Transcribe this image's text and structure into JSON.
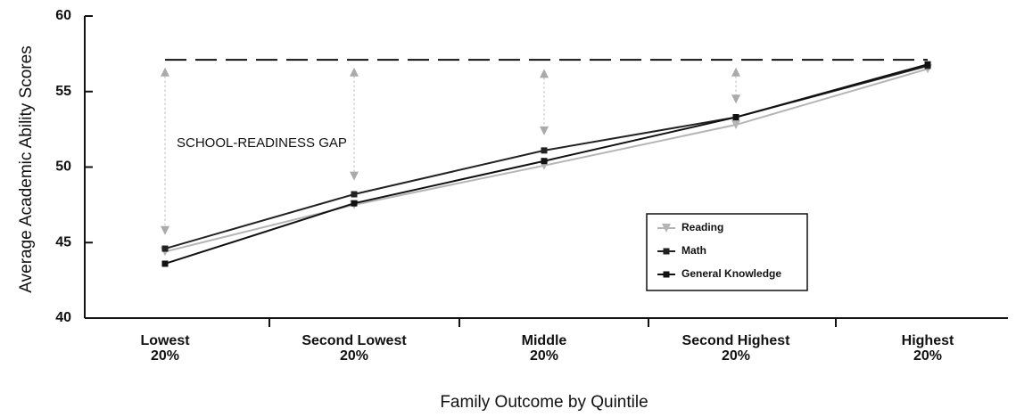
{
  "chart_data": {
    "type": "line",
    "ylabel": "Average Academic Ability Scores",
    "xlabel": "Family Outcome by Quintile",
    "annotation": "SCHOOL-READINESS GAP",
    "categories": [
      [
        "Lowest",
        "20%"
      ],
      [
        "Second Lowest",
        "20%"
      ],
      [
        "Middle",
        "20%"
      ],
      [
        "Second Highest",
        "20%"
      ],
      [
        "Highest",
        "20%"
      ]
    ],
    "series": [
      {
        "name": "Reading",
        "color": "#b5b5b5",
        "marker": "triangle-down",
        "values": [
          44.4,
          47.5,
          50.1,
          52.8,
          56.5
        ]
      },
      {
        "name": "Math",
        "color": "#222222",
        "marker": "square",
        "values": [
          44.6,
          48.2,
          51.1,
          53.3,
          56.7
        ]
      },
      {
        "name": "General Knowledge",
        "color": "#111111",
        "marker": "square",
        "values": [
          43.6,
          47.6,
          50.4,
          53.3,
          56.8
        ]
      }
    ],
    "gap_reference": 57.1,
    "gap_top": [
      56.3,
      56.3,
      56.2,
      56.3
    ],
    "gap_bottom": [
      45.8,
      49.4,
      52.4,
      54.5
    ],
    "ylim": [
      40,
      60
    ],
    "yticks": [
      40,
      45,
      50,
      55,
      60
    ],
    "legend": "lower right"
  }
}
